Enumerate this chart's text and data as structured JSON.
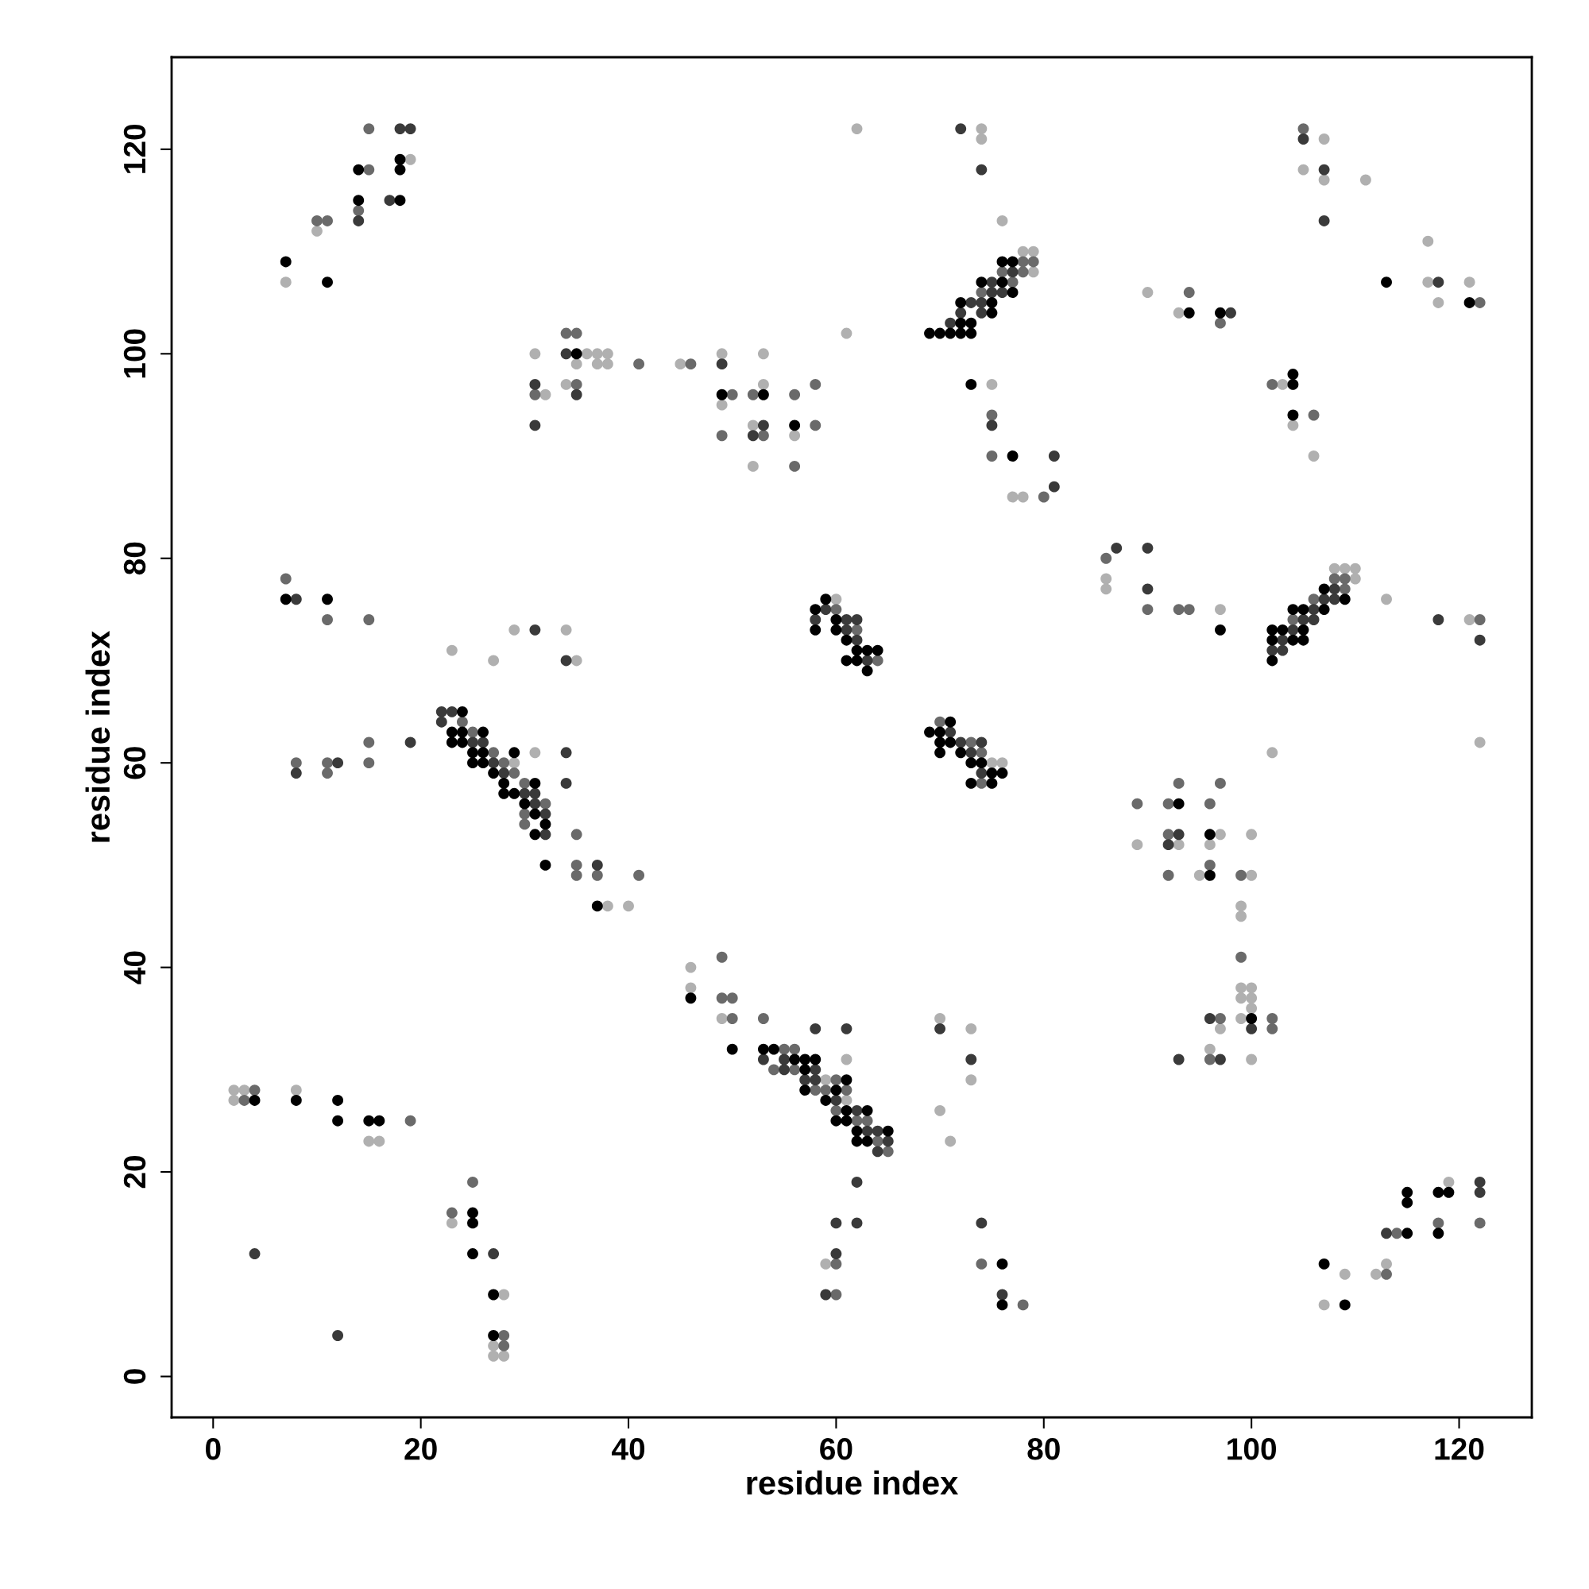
{
  "chart_data": {
    "type": "scatter",
    "xlabel": "residue index",
    "ylabel": "residue index",
    "xlim": [
      -4,
      127
    ],
    "ylim": [
      -4,
      129
    ],
    "xticks": [
      0,
      20,
      40,
      60,
      80,
      100,
      120
    ],
    "yticks": [
      0,
      20,
      40,
      60,
      80,
      100,
      120
    ],
    "grid": false,
    "marker": "circle",
    "series": [
      {
        "color": "#b0b0b0",
        "x": [
          7,
          10,
          19,
          31,
          32,
          34,
          35,
          36,
          37,
          37,
          38,
          38,
          45,
          49,
          49,
          52,
          52,
          53,
          53,
          56,
          61,
          62,
          74,
          74,
          76,
          78,
          79,
          79,
          75,
          77,
          78,
          90,
          93,
          103,
          104,
          106,
          105,
          107,
          107,
          111,
          117,
          117,
          118,
          121,
          23,
          27,
          29,
          34,
          35,
          29,
          31,
          38,
          40,
          60,
          75,
          76,
          86,
          86,
          97,
          102,
          113,
          121,
          122,
          109,
          110,
          110,
          108,
          89,
          93,
          95,
          96,
          97,
          99,
          99,
          99,
          99,
          99,
          100,
          100,
          100,
          100,
          100,
          100,
          96,
          97,
          46,
          46,
          49,
          59,
          61,
          61,
          59,
          70,
          73,
          73,
          70,
          71,
          2,
          2,
          3,
          8,
          15,
          16,
          23,
          28,
          27,
          27,
          28,
          107,
          109,
          112,
          113,
          119
        ],
        "values": [
          107,
          112,
          119,
          100,
          96,
          97,
          99,
          100,
          100,
          99,
          100,
          99,
          99,
          100,
          95,
          93,
          89,
          100,
          97,
          92,
          102,
          122,
          122,
          121,
          113,
          110,
          110,
          108,
          97,
          86,
          86,
          106,
          104,
          97,
          93,
          90,
          118,
          121,
          117,
          117,
          111,
          107,
          105,
          107,
          71,
          70,
          73,
          73,
          70,
          60,
          61,
          46,
          46,
          76,
          60,
          60,
          78,
          77,
          75,
          61,
          76,
          74,
          62,
          79,
          79,
          78,
          79,
          52,
          52,
          49,
          52,
          53,
          46,
          45,
          38,
          37,
          35,
          53,
          49,
          38,
          37,
          36,
          31,
          32,
          34,
          40,
          38,
          35,
          29,
          31,
          27,
          11,
          35,
          34,
          29,
          26,
          23,
          28,
          27,
          28,
          28,
          23,
          23,
          15,
          8,
          3,
          2,
          2,
          7,
          10,
          10,
          11,
          19
        ]
      },
      {
        "color": "#6a6a6a",
        "x": [
          10,
          11,
          14,
          15,
          15,
          31,
          34,
          35,
          35,
          41,
          46,
          49,
          50,
          52,
          53,
          56,
          56,
          58,
          58,
          74,
          76,
          77,
          78,
          78,
          79,
          75,
          75,
          80,
          94,
          97,
          102,
          106,
          105,
          122,
          7,
          11,
          15,
          8,
          11,
          11,
          15,
          15,
          24,
          25,
          27,
          28,
          29,
          30,
          30,
          30,
          32,
          35,
          35,
          35,
          37,
          41,
          60,
          62,
          64,
          70,
          73,
          74,
          74,
          86,
          90,
          93,
          94,
          122,
          104,
          106,
          108,
          109,
          109,
          89,
          92,
          92,
          92,
          93,
          96,
          96,
          97,
          99,
          99,
          102,
          102,
          96,
          97,
          49,
          49,
          50,
          50,
          53,
          54,
          55,
          56,
          56,
          58,
          59,
          60,
          60,
          61,
          62,
          63,
          64,
          65,
          60,
          60,
          74,
          78,
          3,
          4,
          19,
          23,
          25,
          28,
          28,
          113,
          114,
          118,
          122
        ],
        "values": [
          113,
          113,
          114,
          118,
          122,
          96,
          102,
          102,
          97,
          99,
          99,
          92,
          96,
          96,
          92,
          96,
          89,
          97,
          93,
          106,
          108,
          107,
          109,
          108,
          109,
          94,
          90,
          86,
          106,
          103,
          97,
          94,
          122,
          105,
          78,
          74,
          74,
          60,
          60,
          59,
          62,
          60,
          64,
          63,
          61,
          60,
          59,
          58,
          55,
          54,
          56,
          53,
          50,
          49,
          49,
          49,
          75,
          73,
          70,
          64,
          62,
          61,
          58,
          80,
          75,
          75,
          75,
          74,
          74,
          76,
          78,
          78,
          77,
          56,
          56,
          53,
          49,
          58,
          56,
          50,
          58,
          49,
          41,
          35,
          34,
          31,
          35,
          41,
          37,
          37,
          35,
          35,
          30,
          32,
          32,
          30,
          28,
          28,
          29,
          26,
          28,
          25,
          25,
          23,
          22,
          11,
          8,
          11,
          7,
          27,
          28,
          25,
          16,
          19,
          4,
          3,
          10,
          14,
          15,
          15
        ]
      },
      {
        "color": "#3a3a3a",
        "x": [
          14,
          17,
          18,
          19,
          31,
          31,
          34,
          35,
          49,
          52,
          53,
          72,
          74,
          71,
          72,
          73,
          74,
          74,
          75,
          75,
          76,
          77,
          75,
          81,
          81,
          98,
          105,
          107,
          107,
          118,
          8,
          8,
          12,
          19,
          31,
          34,
          22,
          22,
          23,
          25,
          26,
          27,
          28,
          30,
          31,
          31,
          32,
          32,
          34,
          34,
          37,
          58,
          59,
          61,
          61,
          62,
          62,
          63,
          71,
          72,
          73,
          74,
          74,
          87,
          90,
          90,
          118,
          122,
          102,
          103,
          103,
          104,
          105,
          106,
          106,
          107,
          108,
          108,
          92,
          93,
          100,
          93,
          96,
          97,
          53,
          55,
          55,
          57,
          58,
          58,
          58,
          60,
          61,
          62,
          63,
          64,
          64,
          65,
          62,
          62,
          60,
          60,
          59,
          70,
          73,
          74,
          76,
          4,
          12,
          27,
          113,
          122,
          122
        ],
        "values": [
          113,
          115,
          122,
          122,
          97,
          93,
          100,
          96,
          99,
          92,
          93,
          122,
          118,
          103,
          104,
          105,
          105,
          104,
          107,
          106,
          106,
          108,
          93,
          90,
          87,
          104,
          121,
          118,
          113,
          107,
          76,
          59,
          60,
          62,
          73,
          70,
          65,
          64,
          65,
          62,
          62,
          60,
          59,
          57,
          57,
          56,
          55,
          53,
          61,
          58,
          50,
          74,
          75,
          74,
          73,
          74,
          72,
          70,
          63,
          62,
          61,
          62,
          59,
          81,
          81,
          77,
          74,
          72,
          71,
          72,
          71,
          73,
          74,
          75,
          74,
          76,
          77,
          76,
          52,
          53,
          34,
          31,
          35,
          31,
          31,
          31,
          30,
          29,
          30,
          29,
          34,
          27,
          34,
          26,
          24,
          24,
          22,
          23,
          19,
          15,
          15,
          12,
          8,
          34,
          31,
          15,
          8,
          12,
          4,
          12,
          14,
          19,
          18
        ]
      },
      {
        "color": "#000000",
        "x": [
          7,
          11,
          14,
          14,
          18,
          18,
          18,
          35,
          49,
          53,
          56,
          69,
          70,
          71,
          72,
          72,
          72,
          73,
          73,
          74,
          75,
          75,
          76,
          76,
          77,
          77,
          73,
          77,
          94,
          97,
          104,
          104,
          104,
          113,
          121,
          7,
          11,
          23,
          23,
          24,
          24,
          24,
          25,
          25,
          26,
          26,
          26,
          27,
          28,
          28,
          29,
          29,
          30,
          31,
          31,
          31,
          32,
          32,
          37,
          58,
          58,
          59,
          60,
          60,
          61,
          61,
          62,
          62,
          63,
          63,
          64,
          69,
          70,
          70,
          70,
          71,
          71,
          72,
          73,
          73,
          74,
          75,
          75,
          76,
          97,
          102,
          102,
          102,
          103,
          104,
          104,
          105,
          105,
          105,
          107,
          107,
          109,
          93,
          96,
          96,
          100,
          46,
          50,
          53,
          54,
          56,
          57,
          57,
          57,
          58,
          59,
          60,
          60,
          61,
          61,
          61,
          62,
          62,
          63,
          63,
          65,
          76,
          76,
          4,
          8,
          12,
          12,
          15,
          16,
          25,
          25,
          25,
          27,
          27,
          107,
          109,
          115,
          115,
          115,
          118,
          118,
          119
        ],
        "values": [
          109,
          107,
          115,
          118,
          115,
          118,
          119,
          100,
          96,
          96,
          93,
          102,
          102,
          102,
          105,
          103,
          102,
          103,
          102,
          107,
          105,
          104,
          109,
          107,
          109,
          106,
          97,
          90,
          104,
          104,
          98,
          97,
          94,
          107,
          105,
          76,
          76,
          63,
          62,
          65,
          63,
          62,
          61,
          60,
          63,
          61,
          60,
          59,
          58,
          57,
          61,
          57,
          56,
          58,
          55,
          53,
          54,
          50,
          46,
          75,
          73,
          76,
          74,
          73,
          72,
          70,
          71,
          70,
          71,
          69,
          71,
          63,
          63,
          62,
          61,
          64,
          62,
          61,
          60,
          58,
          60,
          59,
          58,
          59,
          73,
          73,
          72,
          70,
          73,
          75,
          72,
          75,
          73,
          72,
          77,
          75,
          76,
          56,
          53,
          49,
          35,
          37,
          32,
          32,
          32,
          31,
          31,
          30,
          28,
          31,
          27,
          28,
          25,
          29,
          26,
          25,
          24,
          23,
          26,
          23,
          24,
          11,
          7,
          27,
          27,
          27,
          25,
          25,
          25,
          16,
          15,
          12,
          8,
          4,
          11,
          7,
          18,
          17,
          14,
          18,
          14,
          18
        ]
      }
    ]
  }
}
